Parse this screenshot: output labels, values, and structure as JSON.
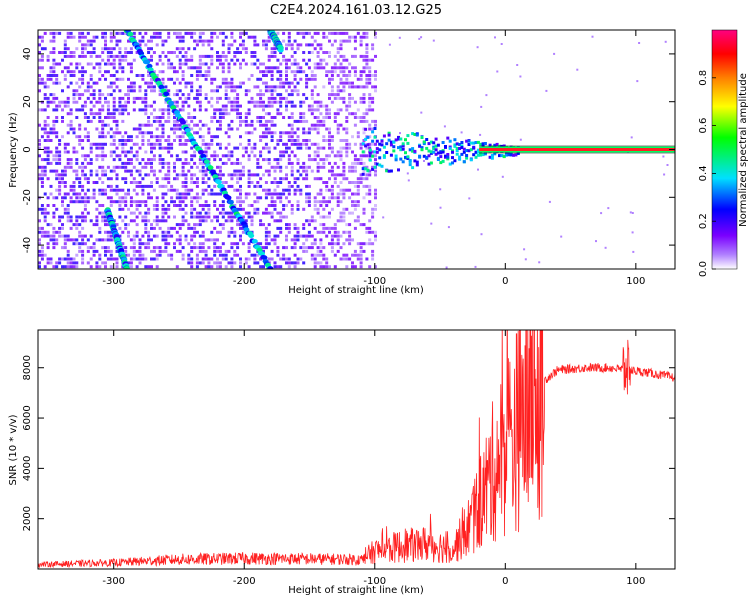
{
  "title": "C2E4.2024.161.03.12.G25",
  "chart_data": [
    {
      "type": "heatmap",
      "name": "spectrogram",
      "xlabel": "Height of straight line (km)",
      "ylabel": "Frequency (Hz)",
      "xlim": [
        -358,
        130
      ],
      "ylim": [
        -50,
        50
      ],
      "xticks": [
        -300,
        -200,
        -100,
        0,
        100
      ],
      "yticks": [
        -40,
        -20,
        0,
        20,
        40
      ],
      "grid": false,
      "colorbar": {
        "label": "Normalized spectral amplitude",
        "range": [
          0,
          1
        ],
        "ticks": [
          0.0,
          0.2,
          0.4,
          0.6,
          0.8
        ],
        "colormap": [
          "#ffffff",
          "#7a00ff",
          "#0000ff",
          "#00e0ff",
          "#00ff00",
          "#ffff00",
          "#ff7f00",
          "#ff0000",
          "#ff0080"
        ]
      },
      "features": {
        "noise_region_x": [
          -358,
          -100
        ],
        "direct_signal_x_start": -110,
        "direct_signal_frequency": 0,
        "aliased_tracks": [
          {
            "x": [
              -290,
              -180
            ],
            "y": [
              50,
              -50
            ]
          },
          {
            "x": [
              -180,
              -172
            ],
            "y": [
              50,
              42
            ]
          },
          {
            "x": [
              -305,
              -290
            ],
            "y": [
              -25,
              -50
            ]
          }
        ]
      }
    },
    {
      "type": "line",
      "name": "snr",
      "xlabel": "Height of straight line (km)",
      "ylabel": "SNR (10 * v/v)",
      "xlim": [
        -358,
        130
      ],
      "ylim": [
        0,
        9500
      ],
      "xticks": [
        -300,
        -200,
        -100,
        0,
        100
      ],
      "yticks": [
        2000,
        4000,
        6000,
        8000
      ],
      "grid": false,
      "series_color": "#ff2020",
      "envelope": {
        "x": [
          -358,
          -300,
          -250,
          -200,
          -150,
          -110,
          -100,
          -80,
          -60,
          -40,
          -30,
          -20,
          -10,
          0,
          10,
          20,
          30,
          40,
          60,
          80,
          95,
          110,
          130
        ],
        "y": [
          180,
          250,
          380,
          420,
          400,
          380,
          700,
          900,
          1000,
          800,
          1500,
          2500,
          3800,
          4800,
          5700,
          6700,
          7500,
          7900,
          8000,
          8000,
          7900,
          7800,
          7600
        ]
      }
    }
  ]
}
